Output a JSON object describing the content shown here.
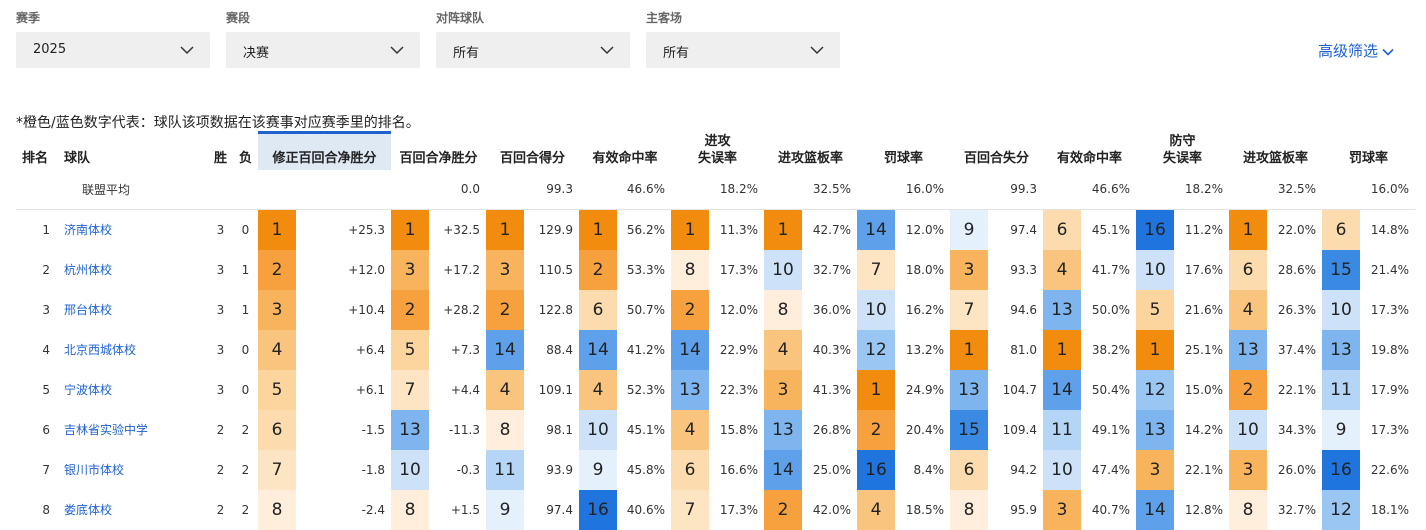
{
  "filters": [
    {
      "label": "赛季",
      "value": "2025"
    },
    {
      "label": "赛段",
      "value": "决赛"
    },
    {
      "label": "对阵球队",
      "value": "所有"
    },
    {
      "label": "主客场",
      "value": "所有"
    }
  ],
  "advanced_filter": "高级筛选",
  "note": "*橙色/蓝色数字代表：球队该项数据在该赛事对应赛季里的排名。",
  "headers": {
    "rank": "排名",
    "team": "球队",
    "win": "胜",
    "loss": "负",
    "adj_net": "修正百回合净胜分",
    "net": "百回合净胜分",
    "off_rtg": "百回合得分",
    "off_efg": "有效命中率",
    "off_tov": "进攻\n失误率",
    "off_orb": "进攻篮板率",
    "off_ft": "罚球率",
    "def_rtg": "百回合失分",
    "def_efg": "有效命中率",
    "def_tov": "防守\n失误率",
    "def_orb": "进攻篮板率",
    "def_ft": "罚球率"
  },
  "average": {
    "label": "联盟平均",
    "net": "0.0",
    "off_rtg": "99.3",
    "off_efg": "46.6%",
    "off_tov": "18.2%",
    "off_orb": "32.5%",
    "off_ft": "16.0%",
    "def_rtg": "99.3",
    "def_efg": "46.6%",
    "def_tov": "18.2%",
    "def_orb": "32.5%",
    "def_ft": "16.0%"
  },
  "colors": {
    "1": "#f28c0f",
    "2": "#f6a13d",
    "3": "#f8b45d",
    "4": "#f9c57e",
    "5": "#fbd49e",
    "6": "#fcdcae",
    "7": "#fde5c3",
    "8": "#feeedb",
    "9": "#e4f0fb",
    "10": "#cde2f8",
    "11": "#b5d5f6",
    "12": "#9ac6f3",
    "13": "#7eb5ef",
    "14": "#5ea1ea",
    "15": "#3a8ae3",
    "16": "#1f74de"
  },
  "rows": [
    {
      "rank": "1",
      "team": "济南体校",
      "w": "3",
      "l": "0",
      "adj": [
        "1",
        "+25.3"
      ],
      "net": [
        "1",
        "+32.5"
      ],
      "ortg": [
        "1",
        "129.9"
      ],
      "oefg": [
        "1",
        "56.2%"
      ],
      "otov": [
        "1",
        "11.3%"
      ],
      "oorb": [
        "1",
        "42.7%"
      ],
      "oft": [
        "14",
        "12.0%"
      ],
      "drtg": [
        "9",
        "97.4"
      ],
      "defg": [
        "6",
        "45.1%"
      ],
      "dtov": [
        "16",
        "11.2%"
      ],
      "dorb": [
        "1",
        "22.0%"
      ],
      "dft": [
        "6",
        "14.8%"
      ]
    },
    {
      "rank": "2",
      "team": "杭州体校",
      "w": "3",
      "l": "1",
      "adj": [
        "2",
        "+12.0"
      ],
      "net": [
        "3",
        "+17.2"
      ],
      "ortg": [
        "3",
        "110.5"
      ],
      "oefg": [
        "2",
        "53.3%"
      ],
      "otov": [
        "8",
        "17.3%"
      ],
      "oorb": [
        "10",
        "32.7%"
      ],
      "oft": [
        "7",
        "18.0%"
      ],
      "drtg": [
        "3",
        "93.3"
      ],
      "defg": [
        "4",
        "41.7%"
      ],
      "dtov": [
        "10",
        "17.6%"
      ],
      "dorb": [
        "6",
        "28.6%"
      ],
      "dft": [
        "15",
        "21.4%"
      ]
    },
    {
      "rank": "3",
      "team": "邢台体校",
      "w": "3",
      "l": "1",
      "adj": [
        "3",
        "+10.4"
      ],
      "net": [
        "2",
        "+28.2"
      ],
      "ortg": [
        "2",
        "122.8"
      ],
      "oefg": [
        "6",
        "50.7%"
      ],
      "otov": [
        "2",
        "12.0%"
      ],
      "oorb": [
        "8",
        "36.0%"
      ],
      "oft": [
        "10",
        "16.2%"
      ],
      "drtg": [
        "7",
        "94.6"
      ],
      "defg": [
        "13",
        "50.0%"
      ],
      "dtov": [
        "5",
        "21.6%"
      ],
      "dorb": [
        "4",
        "26.3%"
      ],
      "dft": [
        "10",
        "17.3%"
      ]
    },
    {
      "rank": "4",
      "team": "北京西城体校",
      "w": "3",
      "l": "0",
      "adj": [
        "4",
        "+6.4"
      ],
      "net": [
        "5",
        "+7.3"
      ],
      "ortg": [
        "14",
        "88.4"
      ],
      "oefg": [
        "14",
        "41.2%"
      ],
      "otov": [
        "14",
        "22.9%"
      ],
      "oorb": [
        "4",
        "40.3%"
      ],
      "oft": [
        "12",
        "13.2%"
      ],
      "drtg": [
        "1",
        "81.0"
      ],
      "defg": [
        "1",
        "38.2%"
      ],
      "dtov": [
        "1",
        "25.1%"
      ],
      "dorb": [
        "13",
        "37.4%"
      ],
      "dft": [
        "13",
        "19.8%"
      ]
    },
    {
      "rank": "5",
      "team": "宁波体校",
      "w": "3",
      "l": "0",
      "adj": [
        "5",
        "+6.1"
      ],
      "net": [
        "7",
        "+4.4"
      ],
      "ortg": [
        "4",
        "109.1"
      ],
      "oefg": [
        "4",
        "52.3%"
      ],
      "otov": [
        "13",
        "22.3%"
      ],
      "oorb": [
        "3",
        "41.3%"
      ],
      "oft": [
        "1",
        "24.9%"
      ],
      "drtg": [
        "13",
        "104.7"
      ],
      "defg": [
        "14",
        "50.4%"
      ],
      "dtov": [
        "12",
        "15.0%"
      ],
      "dorb": [
        "2",
        "22.1%"
      ],
      "dft": [
        "11",
        "17.9%"
      ]
    },
    {
      "rank": "6",
      "team": "吉林省实验中学",
      "w": "2",
      "l": "2",
      "adj": [
        "6",
        "-1.5"
      ],
      "net": [
        "13",
        "-11.3"
      ],
      "ortg": [
        "8",
        "98.1"
      ],
      "oefg": [
        "10",
        "45.1%"
      ],
      "otov": [
        "4",
        "15.8%"
      ],
      "oorb": [
        "13",
        "26.8%"
      ],
      "oft": [
        "2",
        "20.4%"
      ],
      "drtg": [
        "15",
        "109.4"
      ],
      "defg": [
        "11",
        "49.1%"
      ],
      "dtov": [
        "13",
        "14.2%"
      ],
      "dorb": [
        "10",
        "34.3%"
      ],
      "dft": [
        "9",
        "17.3%"
      ]
    },
    {
      "rank": "7",
      "team": "银川市体校",
      "w": "2",
      "l": "2",
      "adj": [
        "7",
        "-1.8"
      ],
      "net": [
        "10",
        "-0.3"
      ],
      "ortg": [
        "11",
        "93.9"
      ],
      "oefg": [
        "9",
        "45.8%"
      ],
      "otov": [
        "6",
        "16.6%"
      ],
      "oorb": [
        "14",
        "25.0%"
      ],
      "oft": [
        "16",
        "8.4%"
      ],
      "drtg": [
        "6",
        "94.2"
      ],
      "defg": [
        "10",
        "47.4%"
      ],
      "dtov": [
        "3",
        "22.1%"
      ],
      "dorb": [
        "3",
        "26.0%"
      ],
      "dft": [
        "16",
        "22.6%"
      ]
    },
    {
      "rank": "8",
      "team": "娄底体校",
      "w": "2",
      "l": "2",
      "adj": [
        "8",
        "-2.4"
      ],
      "net": [
        "8",
        "+1.5"
      ],
      "ortg": [
        "9",
        "97.4"
      ],
      "oefg": [
        "16",
        "40.6%"
      ],
      "otov": [
        "7",
        "17.3%"
      ],
      "oorb": [
        "2",
        "42.0%"
      ],
      "oft": [
        "4",
        "18.5%"
      ],
      "drtg": [
        "8",
        "95.9"
      ],
      "defg": [
        "3",
        "40.7%"
      ],
      "dtov": [
        "14",
        "12.8%"
      ],
      "dorb": [
        "8",
        "32.7%"
      ],
      "dft": [
        "12",
        "18.1%"
      ]
    }
  ]
}
